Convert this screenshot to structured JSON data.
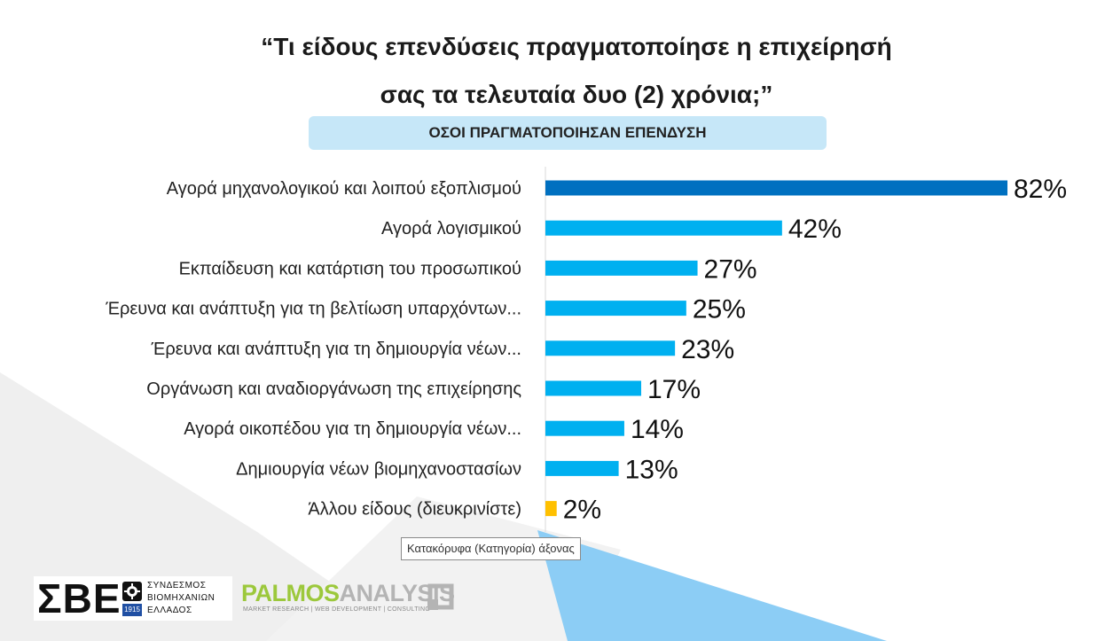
{
  "title": {
    "line1": "“Τι είδους επενδύσεις πραγματοποίησε η επιχείρησή",
    "line2": "σας τα τελευταία δυο (2) χρόνια;”"
  },
  "subtitle": "ΟΣΟΙ ΠΡΑΓΜΑΤΟΠΟΙΗΣΑΝ ΕΠΕΝΔΥΣΗ",
  "tooltip": "Κατακόρυφα (Κατηγορία) άξονας",
  "colors": {
    "highlight": "#0070c0",
    "bar": "#00b0f0",
    "other": "#ffc000",
    "bg_grey": "#eeeeee",
    "bg_blue": "#8ccdf5"
  },
  "logos": {
    "sbe_letters": "ΣΒΕ",
    "sbe_year": "1915",
    "sbe_line1": "ΣΥΝΔΕΣΜΟΣ",
    "sbe_line2": "ΒΙΟΜΗΧΑΝΙΩΝ",
    "sbe_line3": "ΕΛΛΑΔΟΣ",
    "palmos_a": "PALMOS",
    "palmos_b": "ANALYSIS",
    "palmos_sub": "MARKET RESEARCH | WEB DEVELOPMENT | CONSULTING"
  },
  "chart_data": {
    "type": "bar",
    "orientation": "horizontal",
    "categories": [
      "Αγορά μηχανολογικού και λοιπού εξοπλισμού",
      "Αγορά λογισμικού",
      "Εκπαίδευση και κατάρτιση του προσωπικού",
      "Έρευνα και ανάπτυξη για τη βελτίωση υπαρχόντων...",
      "Έρευνα και ανάπτυξη για τη δημιουργία νέων...",
      "Οργάνωση και αναδιοργάνωση της επιχείρησης",
      "Αγορά οικοπέδου για τη δημιουργία νέων...",
      "Δημιουργία νέων βιομηχανοστασίων",
      "Άλλου είδους (διευκρινίστε)"
    ],
    "values": [
      82,
      42,
      27,
      25,
      23,
      17,
      14,
      13,
      2
    ],
    "data_labels": [
      "82%",
      "42%",
      "27%",
      "25%",
      "23%",
      "17%",
      "14%",
      "13%",
      "2%"
    ],
    "bar_colors": [
      "#0070c0",
      "#00b0f0",
      "#00b0f0",
      "#00b0f0",
      "#00b0f0",
      "#00b0f0",
      "#00b0f0",
      "#00b0f0",
      "#ffc000"
    ],
    "xlim": [
      0,
      82
    ],
    "grid": false,
    "legend": "none"
  }
}
